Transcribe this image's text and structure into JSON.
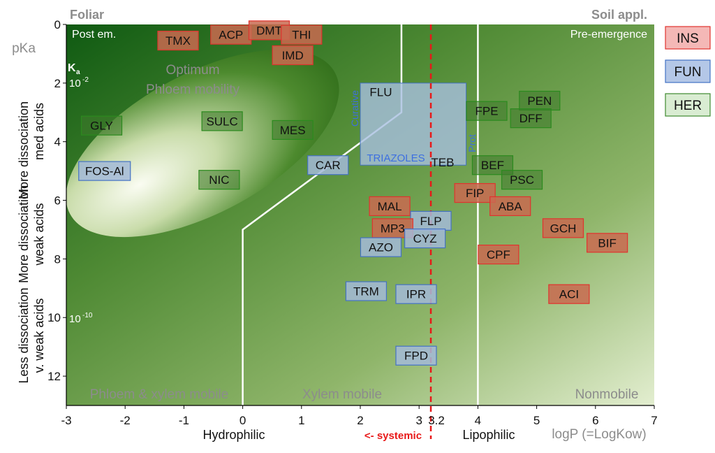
{
  "chart_data": {
    "type": "scatter",
    "title": "",
    "xlabel": "logP (=LogKow)",
    "ylabel": "pKa",
    "xlim": [
      -3,
      7
    ],
    "ylim": [
      0,
      13
    ],
    "y_reversed": true,
    "x_ticks": [
      "-3",
      "-2",
      "-1",
      "0",
      "1",
      "2",
      "3",
      "4",
      "5",
      "6",
      "7"
    ],
    "y_ticks": [
      "0",
      "2",
      "4",
      "6",
      "8",
      "10",
      "12"
    ],
    "extra_x_tick": {
      "value": 3.2,
      "label": "3.2"
    },
    "grid": false,
    "legend_position": "right",
    "legend": [
      {
        "code": "INS",
        "fill": "#f4b8b6",
        "stroke": "#e0332e"
      },
      {
        "code": "FUN",
        "fill": "#b4c7e7",
        "stroke": "#4472c4"
      },
      {
        "code": "HER",
        "fill": "#d9ecd2",
        "stroke": "#3e8a2e"
      }
    ],
    "points": [
      {
        "label": "TMX",
        "cls": "INS",
        "x": -1.1,
        "y": 0.55
      },
      {
        "label": "ACP",
        "cls": "INS",
        "x": -0.2,
        "y": 0.35
      },
      {
        "label": "DMT",
        "cls": "INS",
        "x": 0.45,
        "y": 0.2
      },
      {
        "label": "THI",
        "cls": "INS",
        "x": 1.0,
        "y": 0.35
      },
      {
        "label": "IMD",
        "cls": "INS",
        "x": 0.85,
        "y": 1.05
      },
      {
        "label": "GLY",
        "cls": "HER",
        "x": -2.4,
        "y": 3.45
      },
      {
        "label": "SULC",
        "cls": "HER",
        "x": -0.35,
        "y": 3.3
      },
      {
        "label": "MES",
        "cls": "HER",
        "x": 0.85,
        "y": 3.6
      },
      {
        "label": "NIC",
        "cls": "HER",
        "x": -0.4,
        "y": 5.3
      },
      {
        "label": "FOS-Al",
        "cls": "FUN",
        "x": -2.35,
        "y": 5.0
      },
      {
        "label": "CAR",
        "cls": "FUN",
        "x": 1.45,
        "y": 4.8
      },
      {
        "label": "FLU",
        "cls": "FUN",
        "x": 2.35,
        "y": 2.3
      },
      {
        "label": "TEB",
        "cls": "FUN",
        "x": 3.4,
        "y": 4.7
      },
      {
        "label": "FPE",
        "cls": "HER",
        "x": 4.15,
        "y": 2.95
      },
      {
        "label": "PEN",
        "cls": "HER",
        "x": 5.05,
        "y": 2.6
      },
      {
        "label": "DFF",
        "cls": "HER",
        "x": 4.9,
        "y": 3.2
      },
      {
        "label": "BEF",
        "cls": "HER",
        "x": 4.25,
        "y": 4.8
      },
      {
        "label": "PSC",
        "cls": "HER",
        "x": 4.75,
        "y": 5.3
      },
      {
        "label": "FIP",
        "cls": "INS",
        "x": 3.95,
        "y": 5.75
      },
      {
        "label": "ABA",
        "cls": "INS",
        "x": 4.55,
        "y": 6.2
      },
      {
        "label": "MAL",
        "cls": "INS",
        "x": 2.5,
        "y": 6.2
      },
      {
        "label": "FLP",
        "cls": "FUN",
        "x": 3.2,
        "y": 6.7
      },
      {
        "label": "MP3",
        "cls": "INS",
        "x": 2.55,
        "y": 6.95
      },
      {
        "label": "CYZ",
        "cls": "FUN",
        "x": 3.1,
        "y": 7.3
      },
      {
        "label": "AZO",
        "cls": "FUN",
        "x": 2.35,
        "y": 7.6
      },
      {
        "label": "GCH",
        "cls": "INS",
        "x": 5.45,
        "y": 6.95
      },
      {
        "label": "BIF",
        "cls": "INS",
        "x": 6.2,
        "y": 7.45
      },
      {
        "label": "CPF",
        "cls": "INS",
        "x": 4.35,
        "y": 7.85
      },
      {
        "label": "TRM",
        "cls": "FUN",
        "x": 2.1,
        "y": 9.1
      },
      {
        "label": "IPR",
        "cls": "FUN",
        "x": 2.95,
        "y": 9.2
      },
      {
        "label": "ACI",
        "cls": "INS",
        "x": 5.55,
        "y": 9.2
      },
      {
        "label": "FPD",
        "cls": "FUN",
        "x": 2.95,
        "y": 11.3
      }
    ],
    "boundaries": {
      "systemic_line_x": 3.2,
      "left_white_line": [
        [
          0.0,
          13.0
        ],
        [
          0.0,
          7.0
        ],
        [
          2.7,
          3.0
        ],
        [
          2.7,
          0.0
        ]
      ],
      "right_white_line_x": 4.0
    },
    "triazoles_box": {
      "x": [
        2.0,
        3.8
      ],
      "y": [
        2.0,
        4.8
      ]
    },
    "annotations": {
      "foliar": "Foliar",
      "soil_appl": "Soil appl.",
      "post_em": "Post em.",
      "pre_emergence": "Pre-emergence",
      "optimum_line1": "Optimum",
      "optimum_line2": "Phloem mobility",
      "ka": "K",
      "ka_sub": "a",
      "ka_high": "10",
      "ka_high_exp": "-2",
      "ka_low": "10",
      "ka_low_exp": "-10",
      "curative": "Curative",
      "prot": "Prot",
      "triazoles": "TRIAZOLES",
      "zone_left": "Phloem & xylem mobile",
      "zone_mid": "Xylem mobile",
      "zone_right": "Nonmobile",
      "hydrophilic": "Hydrophilic",
      "systemic": "<- systemic",
      "lipophilic": "Lipophilic",
      "more_diss_1": "More dissociation",
      "more_diss_2": "med acids",
      "weak_acids_1": "More dissociation",
      "weak_acids_2": "weak acids",
      "less_diss_1": "Less dissociation",
      "less_diss_2": "v. weak acids"
    }
  }
}
